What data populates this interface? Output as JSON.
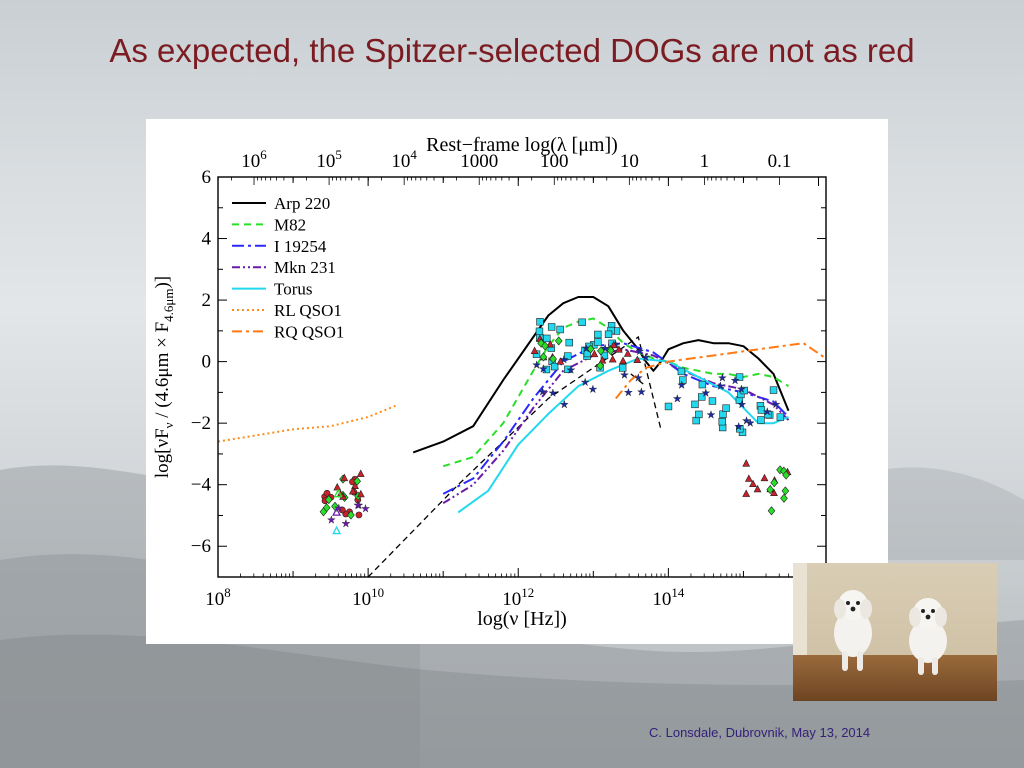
{
  "slide": {
    "title": "As expected, the Spitzer-selected DOGs are not as red",
    "footer": "C. Lonsdale, Dubrovnik,  May 13, 2014"
  },
  "photo": {
    "subject": "two small white puppies running"
  },
  "colors": {
    "title": "#7a1c22",
    "footer": "#34207a",
    "arp220": "#000000",
    "m82": "#2adf2a",
    "i19254": "#2a2aff",
    "mkn231": "#6a1aaa",
    "torus": "#22d8ee",
    "rl_qso1": "#ff8c1a",
    "rq_qso1": "#ff7a14"
  },
  "chart_data": {
    "type": "line",
    "xlabel": "log(ν [Hz])",
    "ylabel": "log[νF",
    "ylabel_sub": "ν",
    "ylabel_mid": " / (4.6μm × F",
    "ylabel_sub2": "4.6μm",
    "ylabel_end": ")]",
    "top_axis_label": "Rest−frame log(λ [μm])",
    "xlim": [
      8,
      16.1
    ],
    "ylim": [
      -7,
      6
    ],
    "x_ticks": [
      {
        "v": 8,
        "m": "10",
        "e": "8"
      },
      {
        "v": 10,
        "m": "10",
        "e": "10"
      },
      {
        "v": 12,
        "m": "10",
        "e": "12"
      },
      {
        "v": 14,
        "m": "10",
        "e": "14"
      }
    ],
    "y_ticks": [
      {
        "v": 6,
        "t": "6"
      },
      {
        "v": 4,
        "t": "4"
      },
      {
        "v": 2,
        "t": "2"
      },
      {
        "v": 0,
        "t": "0"
      },
      {
        "v": -2,
        "t": "−2"
      },
      {
        "v": -4,
        "t": "−4"
      },
      {
        "v": -6,
        "t": "−6"
      }
    ],
    "top_ticks": [
      {
        "x": 8.48,
        "m": "10",
        "e": "6"
      },
      {
        "x": 9.48,
        "m": "10",
        "e": "5"
      },
      {
        "x": 10.48,
        "m": "10",
        "e": "4"
      },
      {
        "x": 11.48,
        "t": "1000"
      },
      {
        "x": 12.48,
        "t": "100"
      },
      {
        "x": 13.48,
        "t": "10"
      },
      {
        "x": 14.48,
        "t": "1"
      },
      {
        "x": 15.48,
        "t": "0.1"
      }
    ],
    "legend_position": "top-left",
    "series": [
      {
        "name": "Arp 220",
        "key": "arp220",
        "dash": "",
        "x": [
          10.6,
          11.0,
          11.4,
          11.8,
          12.2,
          12.4,
          12.6,
          12.8,
          13.0,
          13.2,
          13.4,
          13.6,
          13.7,
          13.8,
          13.9,
          14.0,
          14.2,
          14.4,
          14.6,
          14.8,
          15.0,
          15.2,
          15.4,
          15.6
        ],
        "y": [
          -2.95,
          -2.6,
          -2.1,
          -0.6,
          0.8,
          1.5,
          1.9,
          2.1,
          2.1,
          1.8,
          1.0,
          0.4,
          0.0,
          -0.3,
          0.0,
          0.4,
          0.6,
          0.7,
          0.6,
          0.6,
          0.5,
          0.1,
          -0.4,
          -1.6
        ]
      },
      {
        "name": "M82",
        "key": "m82",
        "dash": "7,5",
        "x": [
          11.0,
          11.4,
          11.8,
          12.2,
          12.4,
          12.6,
          12.8,
          13.0,
          13.2,
          13.4,
          13.6,
          13.8,
          14.0,
          14.2,
          14.4,
          14.6,
          14.8,
          15.0,
          15.2,
          15.4,
          15.6
        ],
        "y": [
          -3.4,
          -3.1,
          -2.0,
          -0.3,
          0.5,
          1.1,
          1.3,
          1.4,
          1.1,
          0.6,
          0.3,
          0.1,
          0.0,
          -0.2,
          -0.3,
          -0.4,
          -0.4,
          -0.5,
          -0.4,
          -0.5,
          -0.8
        ]
      },
      {
        "name": "I 19254",
        "key": "i19254",
        "dash": "12,4,3,4",
        "x": [
          11.0,
          11.4,
          11.8,
          12.2,
          12.6,
          13.0,
          13.4,
          13.8,
          14.2,
          14.6,
          15.0,
          15.4,
          15.6
        ],
        "y": [
          -4.3,
          -3.8,
          -2.6,
          -1.2,
          0.0,
          0.5,
          0.6,
          0.3,
          -0.4,
          -0.8,
          -1.0,
          -1.3,
          -1.8
        ]
      },
      {
        "name": "Mkn 231",
        "key": "mkn231",
        "dash": "8,3,2,3,2,3",
        "x": [
          11.0,
          11.4,
          11.8,
          12.2,
          12.6,
          13.0,
          13.4,
          13.8,
          14.2,
          14.6,
          15.0,
          15.4,
          15.6
        ],
        "y": [
          -4.6,
          -4.0,
          -2.9,
          -1.5,
          -0.3,
          0.2,
          0.4,
          0.2,
          -0.3,
          -0.7,
          -0.9,
          -1.4,
          -1.9
        ]
      },
      {
        "name": "Torus",
        "key": "torus",
        "dash": "",
        "x": [
          11.2,
          11.6,
          12.0,
          12.4,
          12.8,
          13.2,
          13.6,
          14.0,
          14.4,
          14.8,
          15.0,
          15.2,
          15.4,
          15.6
        ],
        "y": [
          -4.9,
          -4.2,
          -2.7,
          -1.7,
          -0.8,
          -0.3,
          0.1,
          0.0,
          -0.5,
          -1.0,
          -1.5,
          -2.0,
          -2.0,
          -1.8
        ]
      },
      {
        "name": "RL QSO1",
        "key": "rl_qso1",
        "dash": "2,3",
        "x": [
          8.0,
          8.5,
          9.0,
          9.5,
          10.0,
          10.4
        ],
        "y": [
          -2.6,
          -2.4,
          -2.2,
          -2.1,
          -1.8,
          -1.4
        ]
      },
      {
        "name": "RQ QSO1",
        "key": "rq_qso1",
        "dash": "10,4,3,4",
        "x": [
          13.3,
          13.5,
          13.7,
          14.0,
          14.3,
          14.6,
          14.9,
          15.2,
          15.5,
          15.8,
          16.1
        ],
        "y": [
          -1.2,
          -0.6,
          -0.2,
          0.0,
          0.1,
          0.2,
          0.3,
          0.4,
          0.5,
          0.6,
          0.1
        ]
      }
    ],
    "aux_lines": [
      {
        "key": "aux",
        "dash": "6,4",
        "x": [
          10.0,
          11.2,
          12.4,
          13.6,
          13.9
        ],
        "y": [
          -7.0,
          -4.0,
          -1.2,
          0.8,
          -2.2
        ]
      },
      {
        "key": "aux",
        "dash": "6,4",
        "x": [
          13.5,
          13.7
        ],
        "y": [
          -0.4,
          -0.8
        ]
      }
    ],
    "markers": {
      "groups": [
        {
          "shape": "square",
          "color": "#22d8ee",
          "n": 30,
          "x": [
            12.2,
            13.4
          ],
          "y": [
            -0.3,
            1.3
          ]
        },
        {
          "shape": "square",
          "color": "#22d8ee",
          "n": 26,
          "x": [
            14.0,
            15.6
          ],
          "y": [
            -2.3,
            -0.3
          ]
        },
        {
          "shape": "star",
          "color": "#1a2aa0",
          "n": 18,
          "x": [
            12.0,
            13.8
          ],
          "y": [
            -1.5,
            0.6
          ]
        },
        {
          "shape": "star",
          "color": "#1a2aa0",
          "n": 14,
          "x": [
            14.0,
            15.6
          ],
          "y": [
            -2.2,
            -0.5
          ]
        },
        {
          "shape": "triangle",
          "color": "#c8222a",
          "n": 14,
          "x": [
            12.2,
            13.6
          ],
          "y": [
            -0.1,
            1.0
          ]
        },
        {
          "shape": "triangle",
          "color": "#c8222a",
          "n": 10,
          "x": [
            15.0,
            15.6
          ],
          "y": [
            -4.3,
            -3.3
          ]
        },
        {
          "shape": "diamond",
          "color": "#2adf2a",
          "n": 10,
          "x": [
            12.2,
            13.4
          ],
          "y": [
            -0.2,
            0.9
          ]
        },
        {
          "shape": "diamond",
          "color": "#2adf2a",
          "n": 8,
          "x": [
            15.1,
            15.6
          ],
          "y": [
            -4.9,
            -3.5
          ]
        },
        {
          "shape": "circle",
          "color": "#c8222a",
          "n": 12,
          "x": [
            9.4,
            9.9
          ],
          "y": [
            -5.0,
            -3.6
          ]
        },
        {
          "shape": "diamond",
          "color": "#2adf2a",
          "n": 10,
          "x": [
            9.4,
            9.9
          ],
          "y": [
            -5.1,
            -3.8
          ]
        },
        {
          "shape": "star",
          "color": "#6a1aaa",
          "n": 6,
          "x": [
            9.5,
            10.0
          ],
          "y": [
            -5.3,
            -4.5
          ]
        },
        {
          "shape": "triangle",
          "color": "#c8222a",
          "n": 8,
          "x": [
            9.55,
            9.95
          ],
          "y": [
            -4.4,
            -3.6
          ]
        }
      ],
      "open": [
        {
          "shape": "triangle",
          "color": "#22d8ee",
          "x": 9.58,
          "y": -5.5
        },
        {
          "shape": "triangle",
          "color": "#6a1aaa",
          "x": 9.58,
          "y": -4.9
        },
        {
          "shape": "triangle",
          "color": "#2adf2a",
          "x": 9.6,
          "y": -4.3
        }
      ]
    }
  }
}
